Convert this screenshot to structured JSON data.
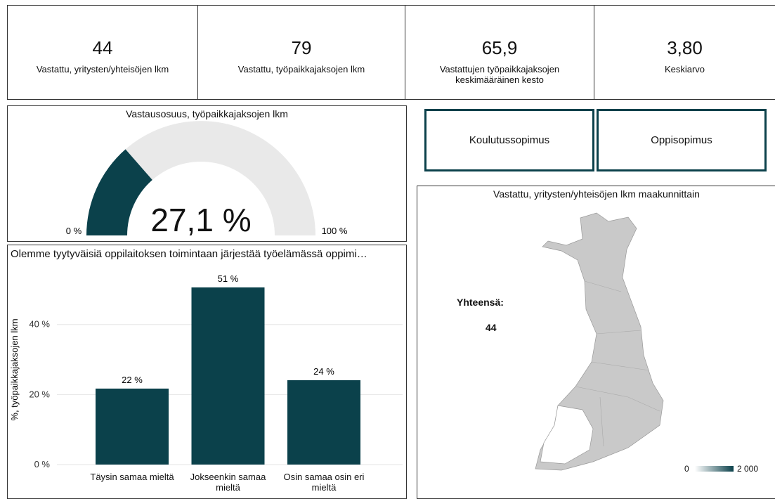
{
  "kpis": [
    {
      "value": "44",
      "label": "Vastattu, yritysten/yhteisöjen lkm"
    },
    {
      "value": "79",
      "label": "Vastattu, työpaikkajaksojen lkm"
    },
    {
      "value": "65,9",
      "label": "Vastattujen työpaikkajaksojen keskimääräinen kesto"
    },
    {
      "value": "3,80",
      "label": "Keskiarvo"
    }
  ],
  "gauge": {
    "title": "Vastausosuus, työpaikkajaksojen lkm",
    "value": 27.1,
    "value_label": "27,1 %",
    "min": {
      "value": 0,
      "label": "0 %"
    },
    "max": {
      "value": 100,
      "label": "100 %"
    },
    "color": "#0b414b"
  },
  "buttons": [
    "Koulutussopimus",
    "Oppisopimus"
  ],
  "chart_data": {
    "type": "bar",
    "title": "Olemme tyytyväisiä oppilaitoksen toimintaan järjestää työelämässä oppimi…",
    "y_label": "%, työpaikkajaksojen lkm",
    "categories": [
      "Täysin samaa mieltä",
      "Jokseenkin samaa mieltä",
      "Osin samaa osin eri mieltä"
    ],
    "values": [
      21.7,
      50.6,
      24.1
    ],
    "value_labels": [
      "22 %",
      "51 %",
      "24 %"
    ],
    "color": "#0b414b",
    "ylim": [
      0,
      55
    ],
    "yticks": [
      {
        "value": 0,
        "label": "0 %"
      },
      {
        "value": 20,
        "label": "20 %"
      },
      {
        "value": 40,
        "label": "40 %"
      }
    ],
    "grid": true
  },
  "map": {
    "title": "Vastattu, yritysten/yhteisöjen lkm maakunnittain",
    "total_label": "Yhteensä:",
    "total": "44",
    "legend": {
      "min": "0",
      "max": "2 000"
    }
  }
}
